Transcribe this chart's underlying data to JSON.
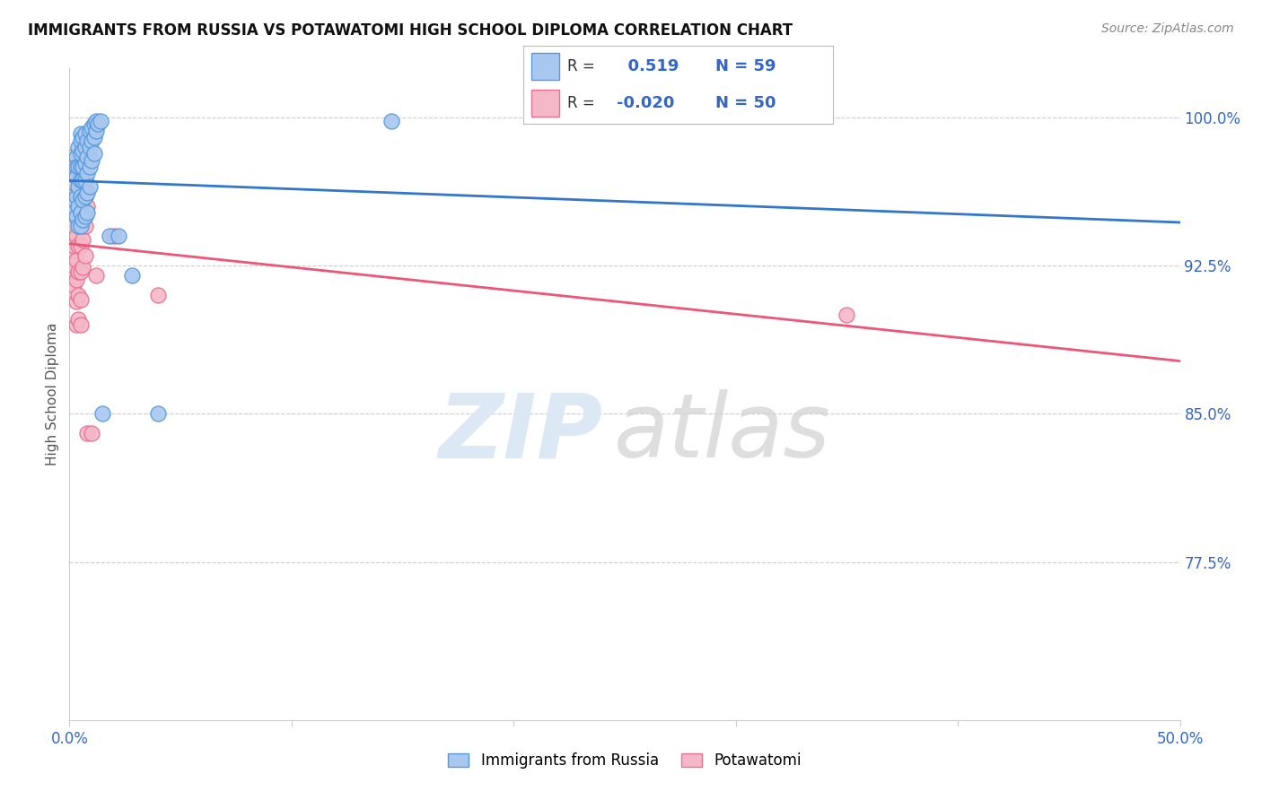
{
  "title": "IMMIGRANTS FROM RUSSIA VS POTAWATOMI HIGH SCHOOL DIPLOMA CORRELATION CHART",
  "source": "Source: ZipAtlas.com",
  "ylabel": "High School Diploma",
  "ytick_labels": [
    "100.0%",
    "92.5%",
    "85.0%",
    "77.5%"
  ],
  "ytick_values": [
    1.0,
    0.925,
    0.85,
    0.775
  ],
  "xlim": [
    0.0,
    0.5
  ],
  "ylim": [
    0.695,
    1.025
  ],
  "r_blue": 0.519,
  "n_blue": 59,
  "r_pink": -0.02,
  "n_pink": 50,
  "legend_blue": "Immigrants from Russia",
  "legend_pink": "Potawatomi",
  "blue_color": "#a8c8f0",
  "pink_color": "#f5b8c8",
  "blue_edge_color": "#5599dd",
  "pink_edge_color": "#e87090",
  "blue_line_color": "#3377cc",
  "pink_line_color": "#ee5577",
  "blue_scatter": [
    [
      0.001,
      0.96
    ],
    [
      0.001,
      0.955
    ],
    [
      0.002,
      0.958
    ],
    [
      0.002,
      0.952
    ],
    [
      0.003,
      0.98
    ],
    [
      0.003,
      0.975
    ],
    [
      0.003,
      0.97
    ],
    [
      0.003,
      0.96
    ],
    [
      0.003,
      0.95
    ],
    [
      0.004,
      0.985
    ],
    [
      0.004,
      0.975
    ],
    [
      0.004,
      0.965
    ],
    [
      0.004,
      0.955
    ],
    [
      0.004,
      0.945
    ],
    [
      0.005,
      0.992
    ],
    [
      0.005,
      0.988
    ],
    [
      0.005,
      0.982
    ],
    [
      0.005,
      0.975
    ],
    [
      0.005,
      0.968
    ],
    [
      0.005,
      0.96
    ],
    [
      0.005,
      0.952
    ],
    [
      0.005,
      0.945
    ],
    [
      0.006,
      0.99
    ],
    [
      0.006,
      0.983
    ],
    [
      0.006,
      0.975
    ],
    [
      0.006,
      0.968
    ],
    [
      0.006,
      0.958
    ],
    [
      0.006,
      0.948
    ],
    [
      0.007,
      0.992
    ],
    [
      0.007,
      0.985
    ],
    [
      0.007,
      0.977
    ],
    [
      0.007,
      0.968
    ],
    [
      0.007,
      0.96
    ],
    [
      0.007,
      0.95
    ],
    [
      0.008,
      0.988
    ],
    [
      0.008,
      0.98
    ],
    [
      0.008,
      0.972
    ],
    [
      0.008,
      0.962
    ],
    [
      0.008,
      0.952
    ],
    [
      0.009,
      0.993
    ],
    [
      0.009,
      0.985
    ],
    [
      0.009,
      0.975
    ],
    [
      0.009,
      0.965
    ],
    [
      0.01,
      0.995
    ],
    [
      0.01,
      0.988
    ],
    [
      0.01,
      0.978
    ],
    [
      0.011,
      0.997
    ],
    [
      0.011,
      0.99
    ],
    [
      0.011,
      0.982
    ],
    [
      0.012,
      0.998
    ],
    [
      0.012,
      0.993
    ],
    [
      0.013,
      0.997
    ],
    [
      0.014,
      0.998
    ],
    [
      0.015,
      0.85
    ],
    [
      0.018,
      0.94
    ],
    [
      0.022,
      0.94
    ],
    [
      0.028,
      0.92
    ],
    [
      0.04,
      0.85
    ],
    [
      0.145,
      0.998
    ]
  ],
  "pink_scatter": [
    [
      0.001,
      0.98
    ],
    [
      0.001,
      0.97
    ],
    [
      0.001,
      0.96
    ],
    [
      0.001,
      0.95
    ],
    [
      0.001,
      0.94
    ],
    [
      0.001,
      0.93
    ],
    [
      0.001,
      0.92
    ],
    [
      0.002,
      0.975
    ],
    [
      0.002,
      0.965
    ],
    [
      0.002,
      0.955
    ],
    [
      0.002,
      0.945
    ],
    [
      0.002,
      0.935
    ],
    [
      0.002,
      0.925
    ],
    [
      0.002,
      0.915
    ],
    [
      0.003,
      0.97
    ],
    [
      0.003,
      0.96
    ],
    [
      0.003,
      0.95
    ],
    [
      0.003,
      0.94
    ],
    [
      0.003,
      0.928
    ],
    [
      0.003,
      0.918
    ],
    [
      0.003,
      0.907
    ],
    [
      0.003,
      0.895
    ],
    [
      0.004,
      0.968
    ],
    [
      0.004,
      0.958
    ],
    [
      0.004,
      0.948
    ],
    [
      0.004,
      0.935
    ],
    [
      0.004,
      0.922
    ],
    [
      0.004,
      0.91
    ],
    [
      0.004,
      0.898
    ],
    [
      0.005,
      0.972
    ],
    [
      0.005,
      0.96
    ],
    [
      0.005,
      0.948
    ],
    [
      0.005,
      0.935
    ],
    [
      0.005,
      0.922
    ],
    [
      0.005,
      0.908
    ],
    [
      0.005,
      0.895
    ],
    [
      0.006,
      0.965
    ],
    [
      0.006,
      0.952
    ],
    [
      0.006,
      0.938
    ],
    [
      0.006,
      0.924
    ],
    [
      0.007,
      0.96
    ],
    [
      0.007,
      0.945
    ],
    [
      0.007,
      0.93
    ],
    [
      0.008,
      0.955
    ],
    [
      0.008,
      0.84
    ],
    [
      0.01,
      0.84
    ],
    [
      0.012,
      0.92
    ],
    [
      0.02,
      0.94
    ],
    [
      0.04,
      0.91
    ],
    [
      0.35,
      0.9
    ]
  ]
}
